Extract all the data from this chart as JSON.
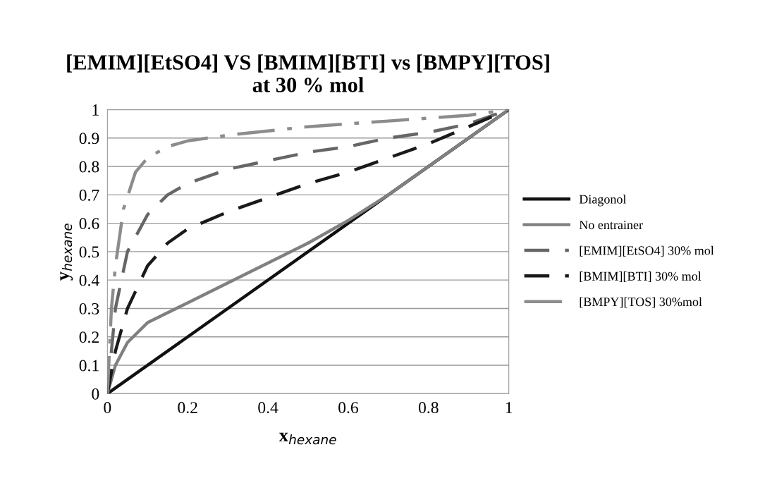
{
  "chart_data": {
    "type": "line",
    "title": "[EMIM][EtSO4] VS [BMIM][BTI] vs [BMPY][TOS]\nat 30 % mol",
    "xlabel": "x$_{hexane}$",
    "ylabel": "y$_{hexane}$",
    "xlim": [
      0,
      1
    ],
    "ylim": [
      0,
      1
    ],
    "xticks": [
      0,
      0.2,
      0.4,
      0.6,
      0.8,
      1
    ],
    "yticks": [
      0,
      0.1,
      0.2,
      0.3,
      0.4,
      0.5,
      0.6,
      0.7,
      0.8,
      0.9,
      1
    ],
    "grid": "y",
    "legend": "right",
    "marker": "none",
    "series": [
      {
        "name": "Diagonol",
        "color": "#111111",
        "line_style": "solid",
        "x": [
          0,
          1
        ],
        "values": [
          0,
          1
        ]
      },
      {
        "name": "No entrainer",
        "color": "#808080",
        "line_style": "solid",
        "x": [
          0,
          0.02,
          0.05,
          0.1,
          0.2,
          0.3,
          0.4,
          0.5,
          0.6,
          0.7,
          0.8,
          0.9,
          1
        ],
        "values": [
          0,
          0.1,
          0.18,
          0.25,
          0.32,
          0.39,
          0.46,
          0.53,
          0.61,
          0.7,
          0.8,
          0.9,
          1
        ]
      },
      {
        "name": "[EMIM][EtSO4] 30% mol",
        "color": "#666666",
        "line_style": "dashed",
        "x": [
          0,
          0.02,
          0.05,
          0.1,
          0.15,
          0.2,
          0.3,
          0.4,
          0.5,
          0.6,
          0.7,
          0.8,
          0.9,
          1
        ],
        "values": [
          0,
          0.3,
          0.5,
          0.63,
          0.7,
          0.74,
          0.79,
          0.82,
          0.85,
          0.87,
          0.9,
          0.92,
          0.95,
          1
        ]
      },
      {
        "name": "[BMIM][BTI] 30% mol",
        "color": "#1a1a1a",
        "line_style": "dashed",
        "x": [
          0,
          0.02,
          0.05,
          0.1,
          0.15,
          0.2,
          0.3,
          0.4,
          0.5,
          0.6,
          0.7,
          0.8,
          0.9,
          1
        ],
        "values": [
          0,
          0.15,
          0.3,
          0.45,
          0.53,
          0.58,
          0.64,
          0.69,
          0.74,
          0.78,
          0.83,
          0.88,
          0.94,
          1
        ]
      },
      {
        "name": "[BMPY][TOS] 30%mol",
        "color": "#8c8c8c",
        "line_style": "dashdot",
        "x": [
          0,
          0.01,
          0.02,
          0.04,
          0.07,
          0.1,
          0.15,
          0.2,
          0.3,
          0.5,
          0.7,
          0.9,
          1
        ],
        "values": [
          0,
          0.3,
          0.45,
          0.65,
          0.78,
          0.83,
          0.87,
          0.89,
          0.91,
          0.94,
          0.96,
          0.98,
          1
        ]
      }
    ]
  }
}
